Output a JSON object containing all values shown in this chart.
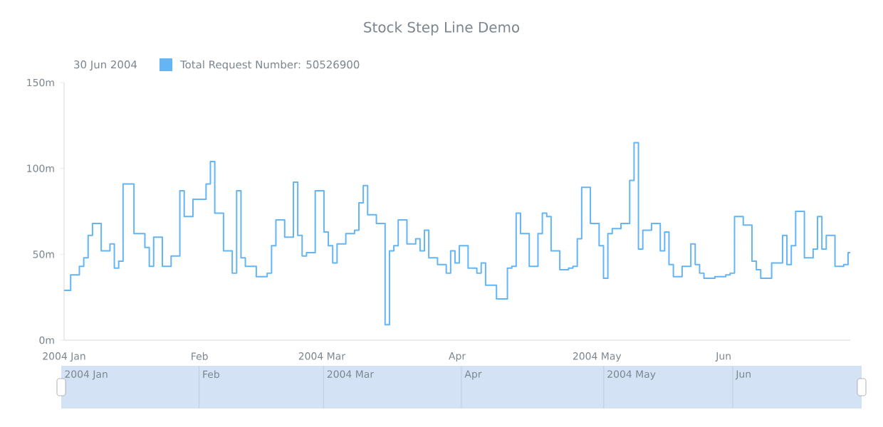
{
  "chart_data": {
    "type": "step",
    "title": "Stock Step Line Demo",
    "annotations": [
      "30 Jun 2004"
    ],
    "x": [
      "2004-01-02",
      "2004-01-05",
      "2004-01-06",
      "2004-01-07",
      "2004-01-08",
      "2004-01-09",
      "2004-01-12",
      "2004-01-13",
      "2004-01-14",
      "2004-01-15",
      "2004-01-16",
      "2004-01-20",
      "2004-01-21",
      "2004-01-22",
      "2004-01-23",
      "2004-01-26",
      "2004-01-27",
      "2004-01-28",
      "2004-01-29",
      "2004-01-30",
      "2004-02-02",
      "2004-02-03",
      "2004-02-04",
      "2004-02-05",
      "2004-02-06",
      "2004-02-09",
      "2004-02-10",
      "2004-02-11",
      "2004-02-12",
      "2004-02-13",
      "2004-02-17",
      "2004-02-18",
      "2004-02-19",
      "2004-02-20",
      "2004-02-23",
      "2004-02-24",
      "2004-02-25",
      "2004-02-26",
      "2004-02-27",
      "2004-03-01",
      "2004-03-02",
      "2004-03-03",
      "2004-03-04",
      "2004-03-05",
      "2004-03-08",
      "2004-03-09",
      "2004-03-10",
      "2004-03-11",
      "2004-03-12",
      "2004-03-15",
      "2004-03-16",
      "2004-03-17",
      "2004-03-18",
      "2004-03-19",
      "2004-03-22",
      "2004-03-23",
      "2004-03-24",
      "2004-03-25",
      "2004-03-26",
      "2004-03-29",
      "2004-03-30",
      "2004-03-31",
      "2004-04-01",
      "2004-04-02",
      "2004-04-05",
      "2004-04-06",
      "2004-04-07",
      "2004-04-08",
      "2004-04-12",
      "2004-04-13",
      "2004-04-14",
      "2004-04-15",
      "2004-04-16",
      "2004-04-19",
      "2004-04-20",
      "2004-04-21",
      "2004-04-22",
      "2004-04-23",
      "2004-04-26",
      "2004-04-27",
      "2004-04-28",
      "2004-04-29",
      "2004-04-30",
      "2004-05-03",
      "2004-05-04",
      "2004-05-05",
      "2004-05-06",
      "2004-05-07",
      "2004-05-10",
      "2004-05-11",
      "2004-05-12",
      "2004-05-13",
      "2004-05-14",
      "2004-05-17",
      "2004-05-18",
      "2004-05-19",
      "2004-05-20",
      "2004-05-21",
      "2004-05-24",
      "2004-05-25",
      "2004-05-26",
      "2004-05-27",
      "2004-05-28",
      "2004-06-01",
      "2004-06-02",
      "2004-06-03",
      "2004-06-04",
      "2004-06-07",
      "2004-06-08",
      "2004-06-09",
      "2004-06-10",
      "2004-06-14",
      "2004-06-15",
      "2004-06-16",
      "2004-06-17",
      "2004-06-18",
      "2004-06-21",
      "2004-06-22",
      "2004-06-23",
      "2004-06-24",
      "2004-06-25",
      "2004-06-28",
      "2004-06-29",
      "2004-06-30"
    ],
    "series": [
      {
        "name": "Total Request Number: 50526900",
        "color": "#64b5f6",
        "values": [
          29,
          38,
          43,
          48,
          61,
          68,
          52,
          56,
          42,
          46,
          91,
          62,
          54,
          43,
          60,
          43,
          49,
          49,
          87,
          72,
          82,
          82,
          91,
          104,
          74,
          52,
          39,
          87,
          48,
          43,
          37,
          39,
          55,
          70,
          60,
          92,
          61,
          49,
          51,
          87,
          63,
          55,
          45,
          56,
          62,
          64,
          80,
          90,
          73,
          68,
          9,
          52,
          55,
          70,
          56,
          59,
          52,
          64,
          48,
          44,
          39,
          52,
          45,
          55,
          42,
          39,
          45,
          32,
          24,
          42,
          43,
          74,
          62,
          43,
          62,
          74,
          72,
          52,
          41,
          42,
          43,
          59,
          89,
          68,
          55,
          36,
          62,
          65,
          68,
          93,
          115,
          53,
          64,
          68,
          52,
          63,
          44,
          37,
          43,
          56,
          44,
          39,
          36,
          37,
          38,
          39,
          72,
          67,
          46,
          41,
          36,
          45,
          61,
          44,
          55,
          75,
          48,
          53,
          72,
          53,
          61,
          43,
          44,
          51
        ]
      }
    ],
    "xticks": [
      {
        "value": "2004-01-02",
        "label": "2004 Jan"
      },
      {
        "value": "2004-02-02",
        "label": "Feb"
      },
      {
        "value": "2004-03-01",
        "label": "2004 Mar"
      },
      {
        "value": "2004-04-01",
        "label": "Apr"
      },
      {
        "value": "2004-05-03",
        "label": "2004 May"
      },
      {
        "value": "2004-06-01",
        "label": "Jun"
      }
    ],
    "xlim": [
      "2004-01-02",
      "2004-06-30"
    ],
    "ylim": [
      0,
      150
    ],
    "yticks": [
      {
        "value": 0,
        "label": "0m"
      },
      {
        "value": 50,
        "label": "50m"
      },
      {
        "value": 100,
        "label": "100m"
      },
      {
        "value": 150,
        "label": "150m"
      }
    ],
    "legend": "top left"
  }
}
